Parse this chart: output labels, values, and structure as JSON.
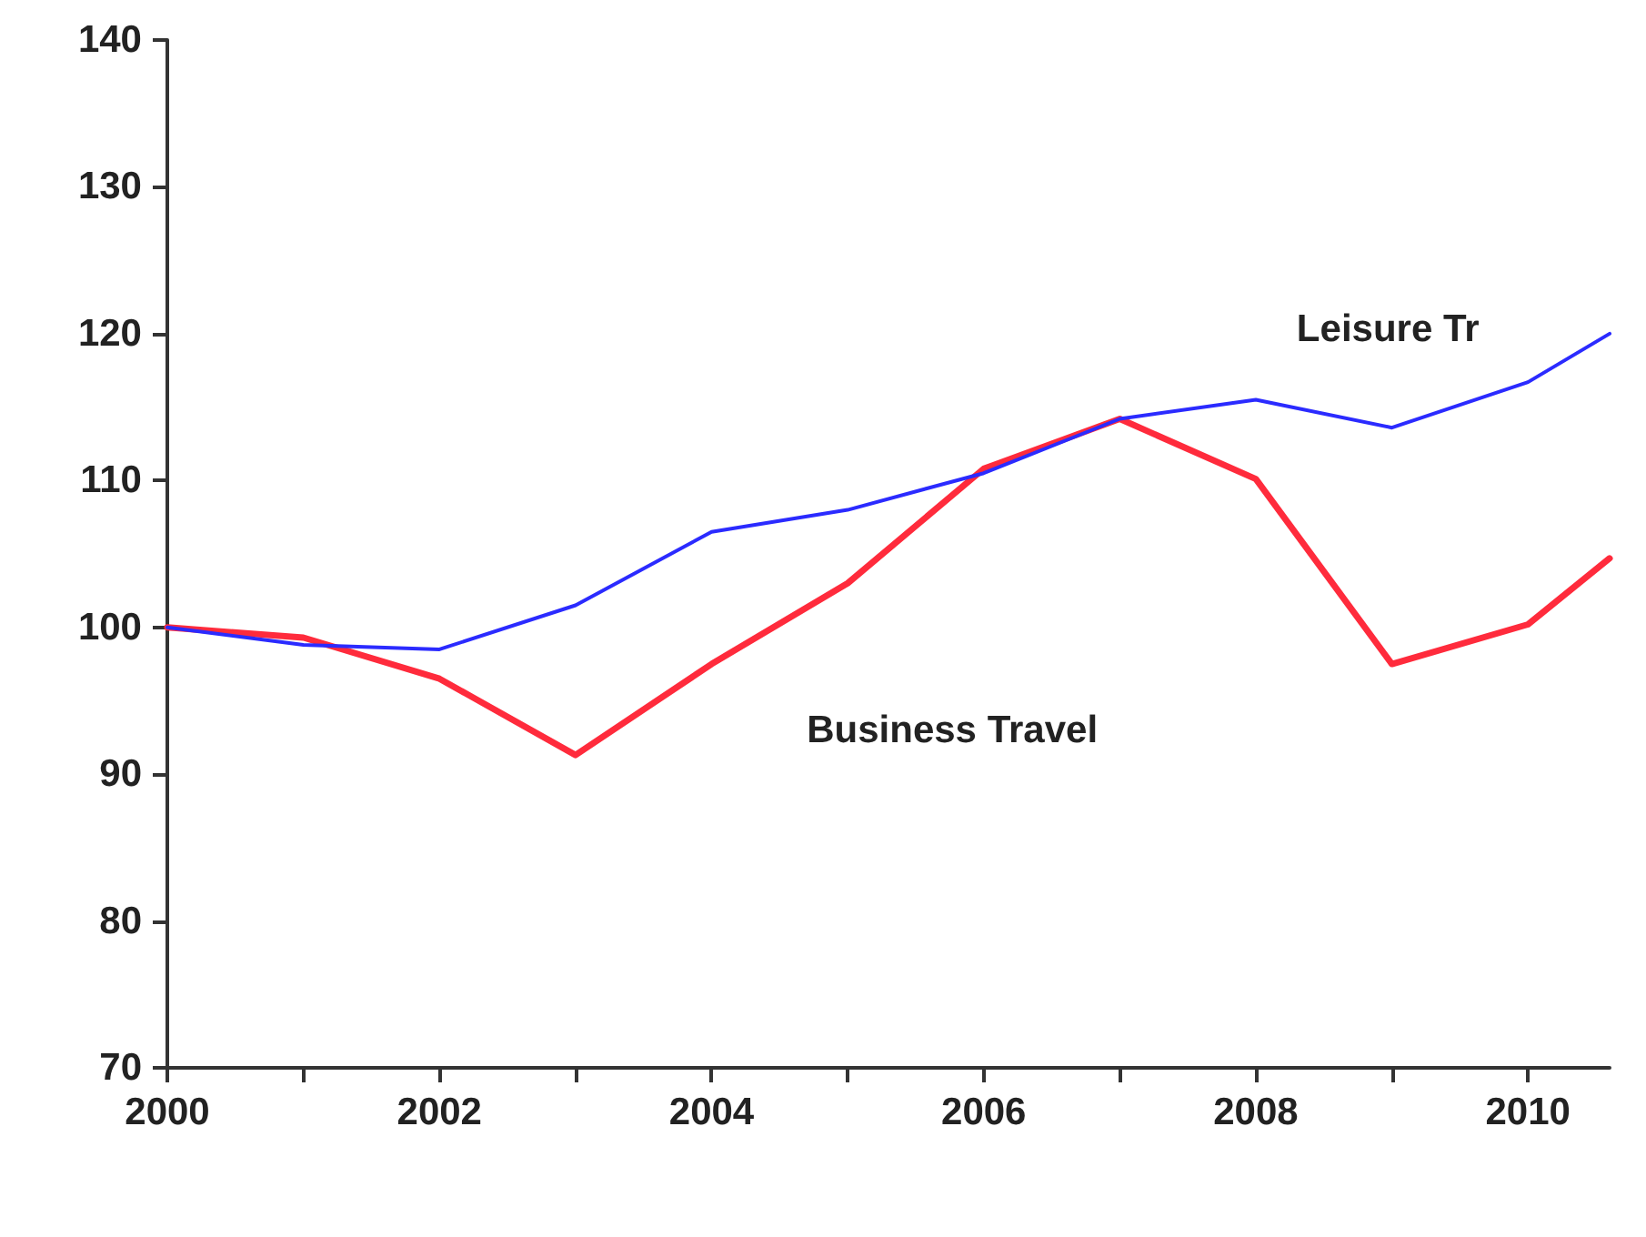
{
  "chart_data": {
    "type": "line",
    "xlim": [
      2000,
      2010.6
    ],
    "xticks": [
      2000,
      {
        "value": 2001,
        "label": null
      },
      2002,
      {
        "value": 2003,
        "label": null
      },
      2004,
      {
        "value": 2005,
        "label": null
      },
      2006,
      {
        "value": 2007,
        "label": null
      },
      2008,
      {
        "value": 2009,
        "label": null
      },
      2010
    ],
    "ylim": [
      70,
      140
    ],
    "yticks": [
      70,
      80,
      90,
      100,
      110,
      120,
      130,
      140
    ],
    "grid": false,
    "legend": false,
    "marker": "none",
    "x": [
      2000,
      2001,
      2002,
      2003,
      2004,
      2005,
      2006,
      2007,
      2008,
      2009,
      2010,
      2010.6
    ],
    "series": [
      {
        "name": "Leisure Tr",
        "color": "#2b2bff",
        "values": [
          100,
          98.8,
          98.5,
          101.5,
          106.5,
          108,
          110.5,
          114.2,
          115.5,
          113.6,
          116.7,
          120
        ]
      },
      {
        "name": "Business Travel",
        "color": "#ff2b3c",
        "values": [
          100,
          99.3,
          96.5,
          91.3,
          97.5,
          103,
          110.8,
          114.2,
          110.1,
          97.5,
          100.2,
          104.7
        ]
      }
    ]
  }
}
